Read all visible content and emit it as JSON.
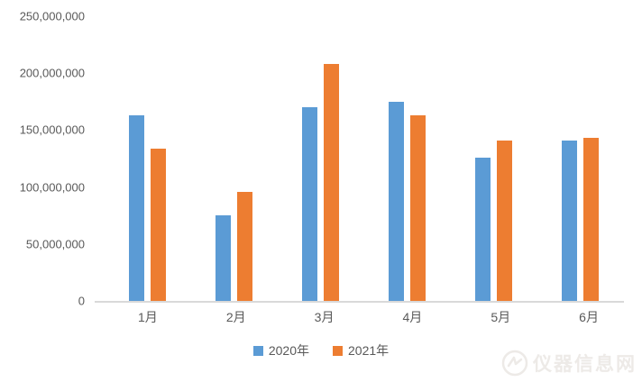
{
  "chart_data": {
    "type": "bar",
    "title": "",
    "xlabel": "",
    "ylabel": "",
    "categories": [
      "1月",
      "2月",
      "3月",
      "4月",
      "5月",
      "6月"
    ],
    "series": [
      {
        "name": "2020年",
        "color": "#5B9BD5",
        "values": [
          163000000,
          75000000,
          170000000,
          175000000,
          126000000,
          141000000
        ]
      },
      {
        "name": "2021年",
        "color": "#ED7D31",
        "values": [
          134000000,
          96000000,
          208000000,
          163000000,
          141000000,
          143000000
        ]
      }
    ],
    "ylim": [
      0,
      250000000
    ],
    "yticks": [
      {
        "value": 250000000,
        "label": "250,000,000"
      },
      {
        "value": 200000000,
        "label": "200,000,000"
      },
      {
        "value": 150000000,
        "label": "150,000,000"
      },
      {
        "value": 100000000,
        "label": "100,000,000"
      },
      {
        "value": 50000000,
        "label": "50,000,000"
      },
      {
        "value": 0,
        "label": "0"
      }
    ],
    "grid": false,
    "legend_position": "bottom"
  },
  "colors": {
    "axis_line": "#D9D9D9",
    "tick_text": "#595959",
    "background": "#FFFFFF"
  },
  "watermark": {
    "text": "仪器信息网"
  }
}
